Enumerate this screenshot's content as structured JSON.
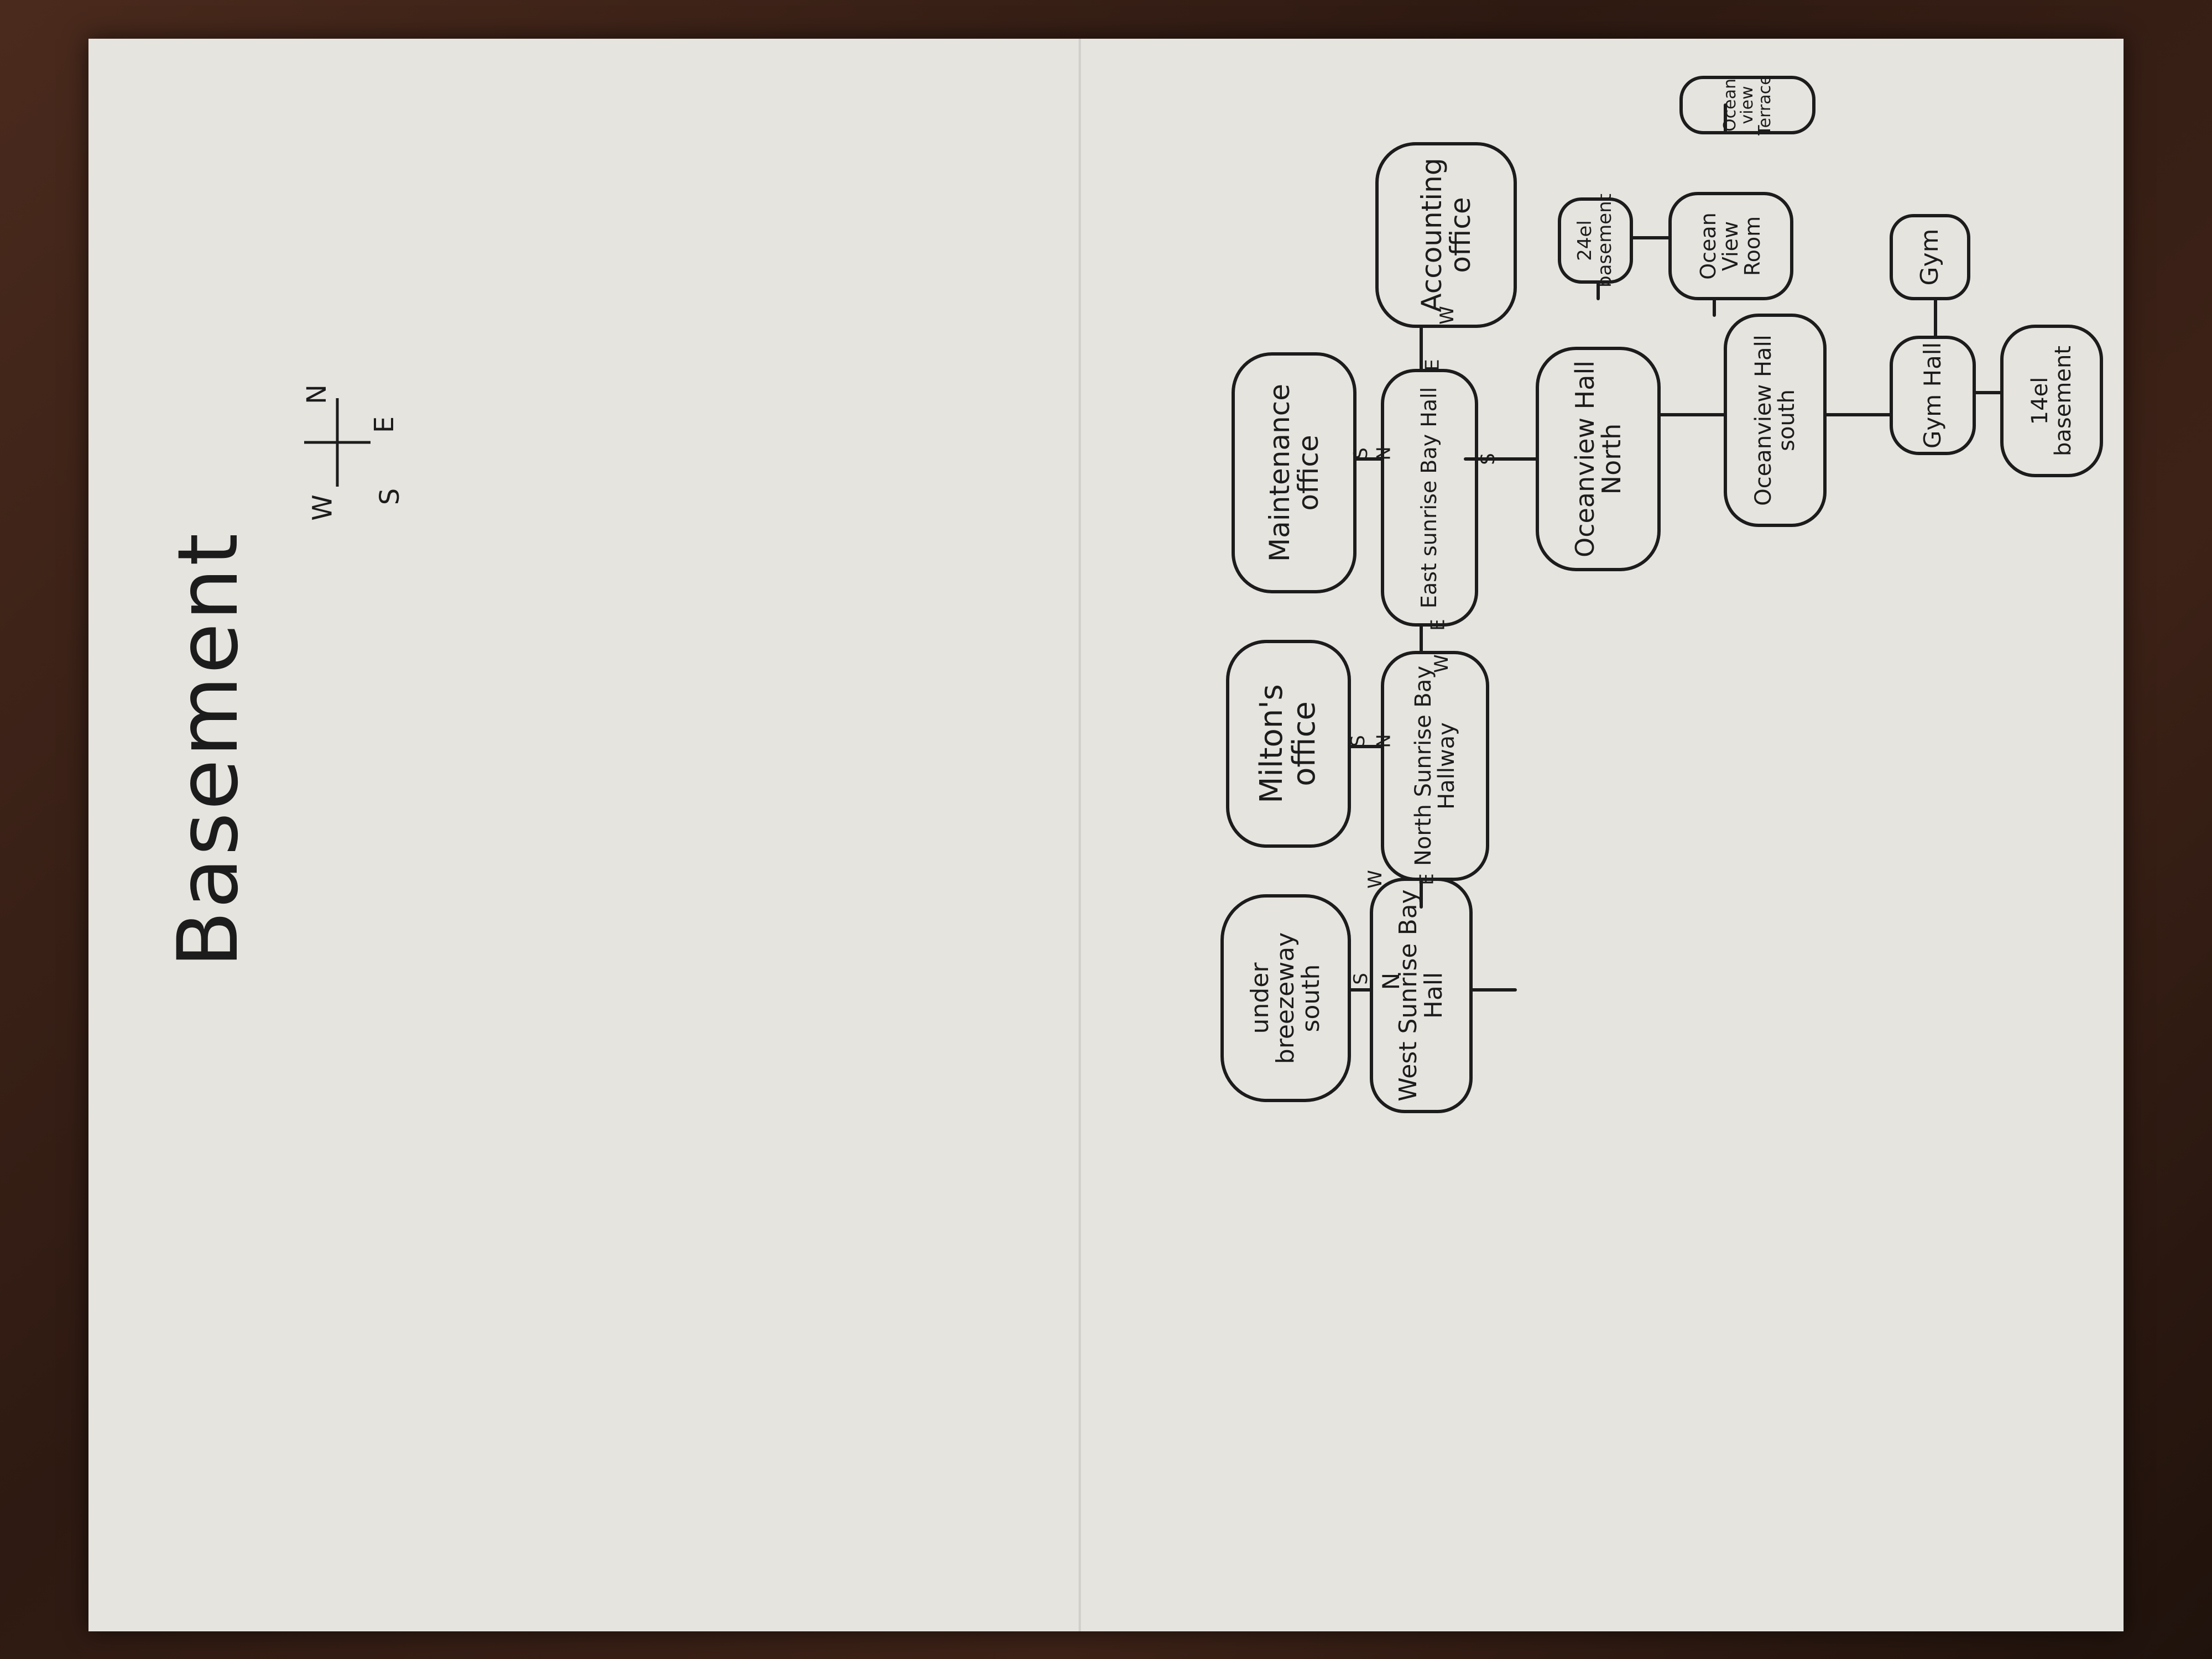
{
  "title": "Basement",
  "compass": {
    "n": "N",
    "s": "S",
    "e": "E",
    "w": "W"
  },
  "rooms": {
    "under_breezeway_south": "under breezeway south",
    "miltons_office": "Milton's office",
    "maintenance_office": "Maintenance office",
    "accounting_office": "Accounting office",
    "west_sunrise_bay_hall": "West Sunrise Bay Hall",
    "north_sunrise_bay_hallway": "North Sunrise Bay Hallway",
    "east_sunrise_bay_hall": "East sunrise Bay Hall",
    "oceanview_hall_north": "Oceanview Hall North",
    "oceanview_hall_south": "Oceanview Hall south",
    "ocean_view_room": "Ocean View Room",
    "ocean_view_terrace": "Ocean view Terrace",
    "hotel_24_basement": "24el basement",
    "gym": "Gym",
    "gym_hall": "Gym Hall",
    "hotel_14_basement": "14el basement"
  },
  "edge_labels": {
    "s": "S",
    "n": "N",
    "e": "E",
    "w": "W"
  }
}
